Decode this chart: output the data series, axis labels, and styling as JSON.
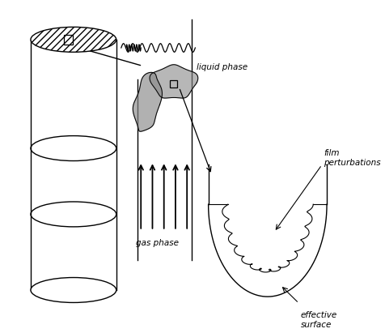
{
  "bg_color": "#ffffff",
  "line_color": "#000000",
  "gray_color": "#888888",
  "labels": {
    "liquid_phase": "liquid phase",
    "gas_phase": "gas phase",
    "film_perturbations": "film\nperturbations",
    "effective_surface": "effective\nsurface"
  },
  "figsize": [
    4.77,
    4.11
  ],
  "dpi": 100
}
